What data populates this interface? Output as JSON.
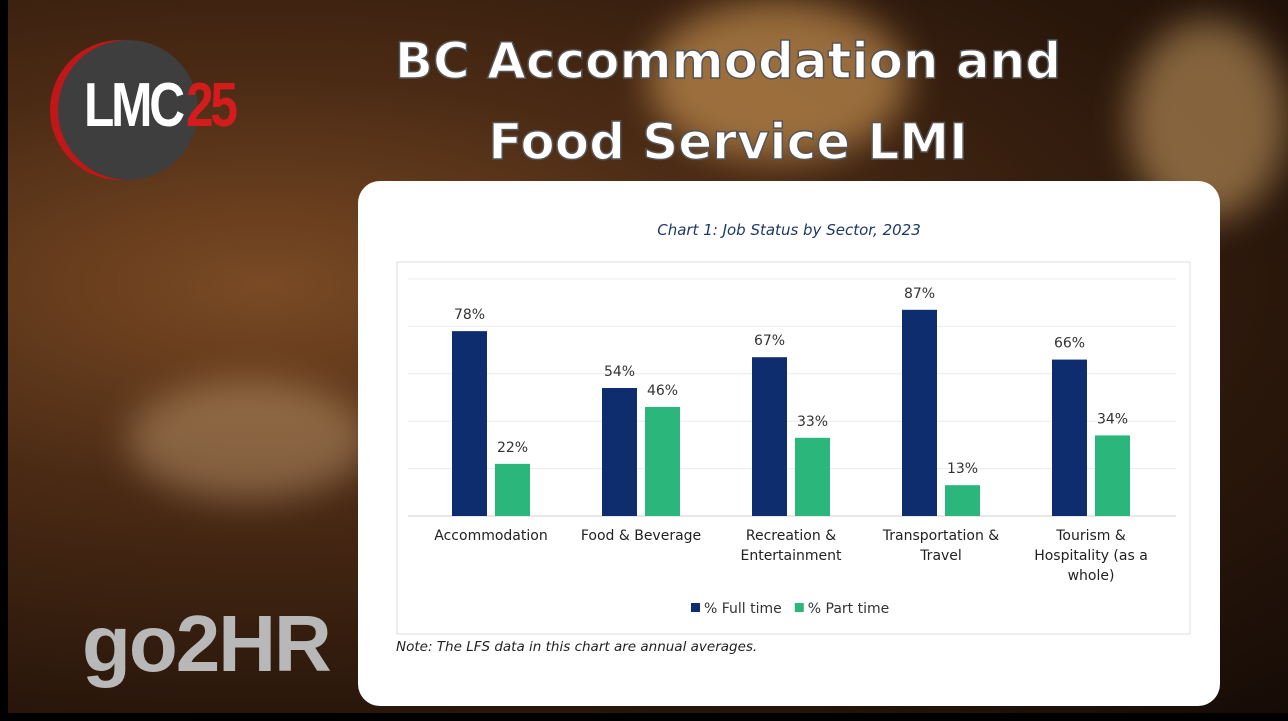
{
  "header": {
    "title": [
      "BC Accommodation and",
      "Food Service LMI"
    ],
    "logo": [
      "LMC",
      "25"
    ],
    "brand": "go2HR"
  },
  "chart_data": {
    "type": "bar",
    "title": "Chart 1: Job Status by Sector, 2023",
    "categories": [
      "Accommodation",
      "Food & Beverage",
      "Recreation & Entertainment",
      "Transportation & Travel",
      "Tourism & Hospitality (as a whole)"
    ],
    "series": [
      {
        "name": "% Full time",
        "color": "#0d2d6e",
        "values": [
          78,
          54,
          67,
          87,
          66
        ],
        "value_labels": [
          "78%",
          "54%",
          "67%",
          "87%",
          "66%"
        ]
      },
      {
        "name": "% Part time",
        "color": "#2bb67b",
        "values": [
          22,
          46,
          33,
          13,
          34
        ],
        "value_labels": [
          "22%",
          "46%",
          "33%",
          "13%",
          "34%"
        ]
      }
    ],
    "ylim": [
      0,
      100
    ],
    "yticks": [
      0,
      20,
      40,
      60,
      80,
      100
    ],
    "show_ytick_labels": false,
    "grid": true,
    "legend": "bottom",
    "note": "Note: The LFS data in this chart are annual averages."
  }
}
